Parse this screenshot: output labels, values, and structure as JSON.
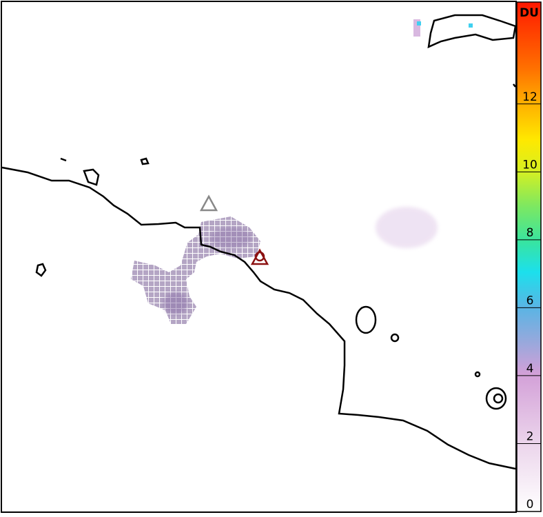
{
  "colorbar": {
    "label": "DU",
    "lim": [
      0,
      15
    ],
    "ticks": [
      0,
      2,
      4,
      6,
      8,
      10,
      12
    ]
  }
}
